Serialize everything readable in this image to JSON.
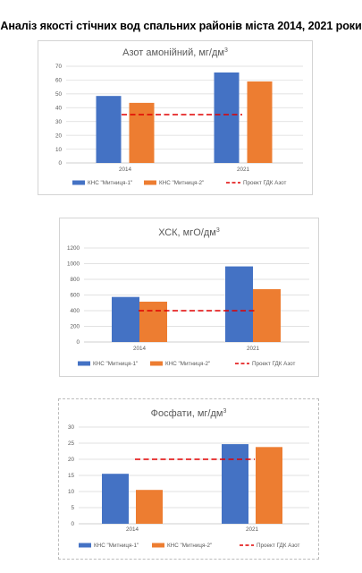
{
  "page_title": "Аналіз якості стічних вод спальних районів міста 2014, 2021 роки",
  "colors": {
    "series1": "#4472C4",
    "series2": "#ED7D31",
    "reference": "#E00000",
    "grid": "#d9d9d9",
    "axis": "#bfbfbf",
    "text": "#595959"
  },
  "chart_data": [
    {
      "type": "bar",
      "title_main": "Азот амонійний, мг/дм",
      "title_sup": "3",
      "categories": [
        "2014",
        "2021"
      ],
      "series": [
        {
          "name": "КНС \"Митниця-1\"",
          "values": [
            48.5,
            65.5
          ]
        },
        {
          "name": "КНС \"Митниця-2\"",
          "values": [
            43.5,
            59
          ]
        }
      ],
      "reference": {
        "name": "Проект ГДК  Азот",
        "value": 35
      },
      "ylim": [
        0,
        70
      ],
      "yticks": [
        0,
        10,
        20,
        30,
        40,
        50,
        60,
        70
      ],
      "grid": true,
      "legend": "bottom"
    },
    {
      "type": "bar",
      "title_main": "ХСК, мгО/дм",
      "title_sup": "3",
      "categories": [
        "2014",
        "2021"
      ],
      "series": [
        {
          "name": "КНС \"Митниця-1\"",
          "values": [
            575,
            965
          ]
        },
        {
          "name": "КНС \"Митниця-2\"",
          "values": [
            515,
            675
          ]
        }
      ],
      "reference": {
        "name": "Проект ГДК  Азот",
        "value": 400
      },
      "ylim": [
        0,
        1200
      ],
      "yticks": [
        0,
        200,
        400,
        600,
        800,
        1000,
        1200
      ],
      "grid": true,
      "legend": "bottom"
    },
    {
      "type": "bar",
      "title_main": "Фосфати, мг/дм",
      "title_sup": "3",
      "categories": [
        "2014",
        "2021"
      ],
      "series": [
        {
          "name": "КНС \"Митниця-1\"",
          "values": [
            15.5,
            24.7
          ]
        },
        {
          "name": "КНС \"Митниця-2\"",
          "values": [
            10.5,
            23.8
          ]
        }
      ],
      "reference": {
        "name": "Проект ГДК  Азот",
        "value": 20
      },
      "ylim": [
        0,
        30
      ],
      "yticks": [
        0,
        5,
        10,
        15,
        20,
        25,
        30
      ],
      "grid": true,
      "legend": "bottom"
    }
  ]
}
